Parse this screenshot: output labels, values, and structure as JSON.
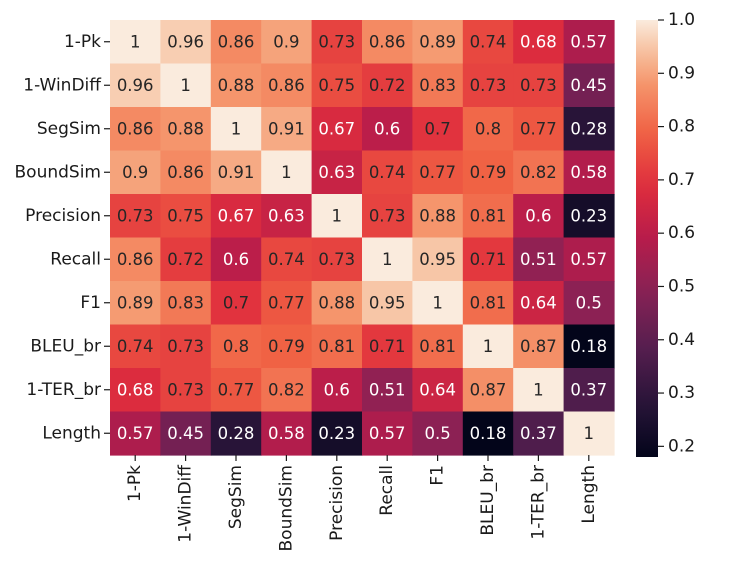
{
  "chart_data": {
    "type": "heatmap",
    "title": "",
    "colormap": "rocket",
    "labels": [
      "1-Pk",
      "1-WinDiff",
      "SegSim",
      "BoundSim",
      "Precision",
      "Recall",
      "F1",
      "BLEU_br",
      "1-TER_br",
      "Length"
    ],
    "values": [
      [
        1,
        0.96,
        0.86,
        0.9,
        0.73,
        0.86,
        0.89,
        0.74,
        0.68,
        0.57
      ],
      [
        0.96,
        1,
        0.88,
        0.86,
        0.75,
        0.72,
        0.83,
        0.73,
        0.73,
        0.45
      ],
      [
        0.86,
        0.88,
        1,
        0.91,
        0.67,
        0.6,
        0.7,
        0.8,
        0.77,
        0.28
      ],
      [
        0.9,
        0.86,
        0.91,
        1,
        0.63,
        0.74,
        0.77,
        0.79,
        0.82,
        0.58
      ],
      [
        0.73,
        0.75,
        0.67,
        0.63,
        1,
        0.73,
        0.88,
        0.81,
        0.6,
        0.23
      ],
      [
        0.86,
        0.72,
        0.6,
        0.74,
        0.73,
        1,
        0.95,
        0.71,
        0.51,
        0.57
      ],
      [
        0.89,
        0.83,
        0.7,
        0.77,
        0.88,
        0.95,
        1,
        0.81,
        0.64,
        0.5
      ],
      [
        0.74,
        0.73,
        0.8,
        0.79,
        0.81,
        0.71,
        0.81,
        1,
        0.87,
        0.18
      ],
      [
        0.68,
        0.73,
        0.77,
        0.82,
        0.6,
        0.51,
        0.64,
        0.87,
        1,
        0.37
      ],
      [
        0.57,
        0.45,
        0.28,
        0.58,
        0.23,
        0.57,
        0.5,
        0.18,
        0.37,
        1
      ]
    ],
    "colorbar": {
      "min": 0.18,
      "max": 1.0,
      "ticks": [
        0.2,
        0.3,
        0.4,
        0.5,
        0.6,
        0.7,
        0.8,
        0.9,
        1.0
      ],
      "tick_labels": [
        "0.2",
        "0.3",
        "0.4",
        "0.5",
        "0.6",
        "0.7",
        "0.8",
        "0.9",
        "1.0"
      ]
    }
  }
}
